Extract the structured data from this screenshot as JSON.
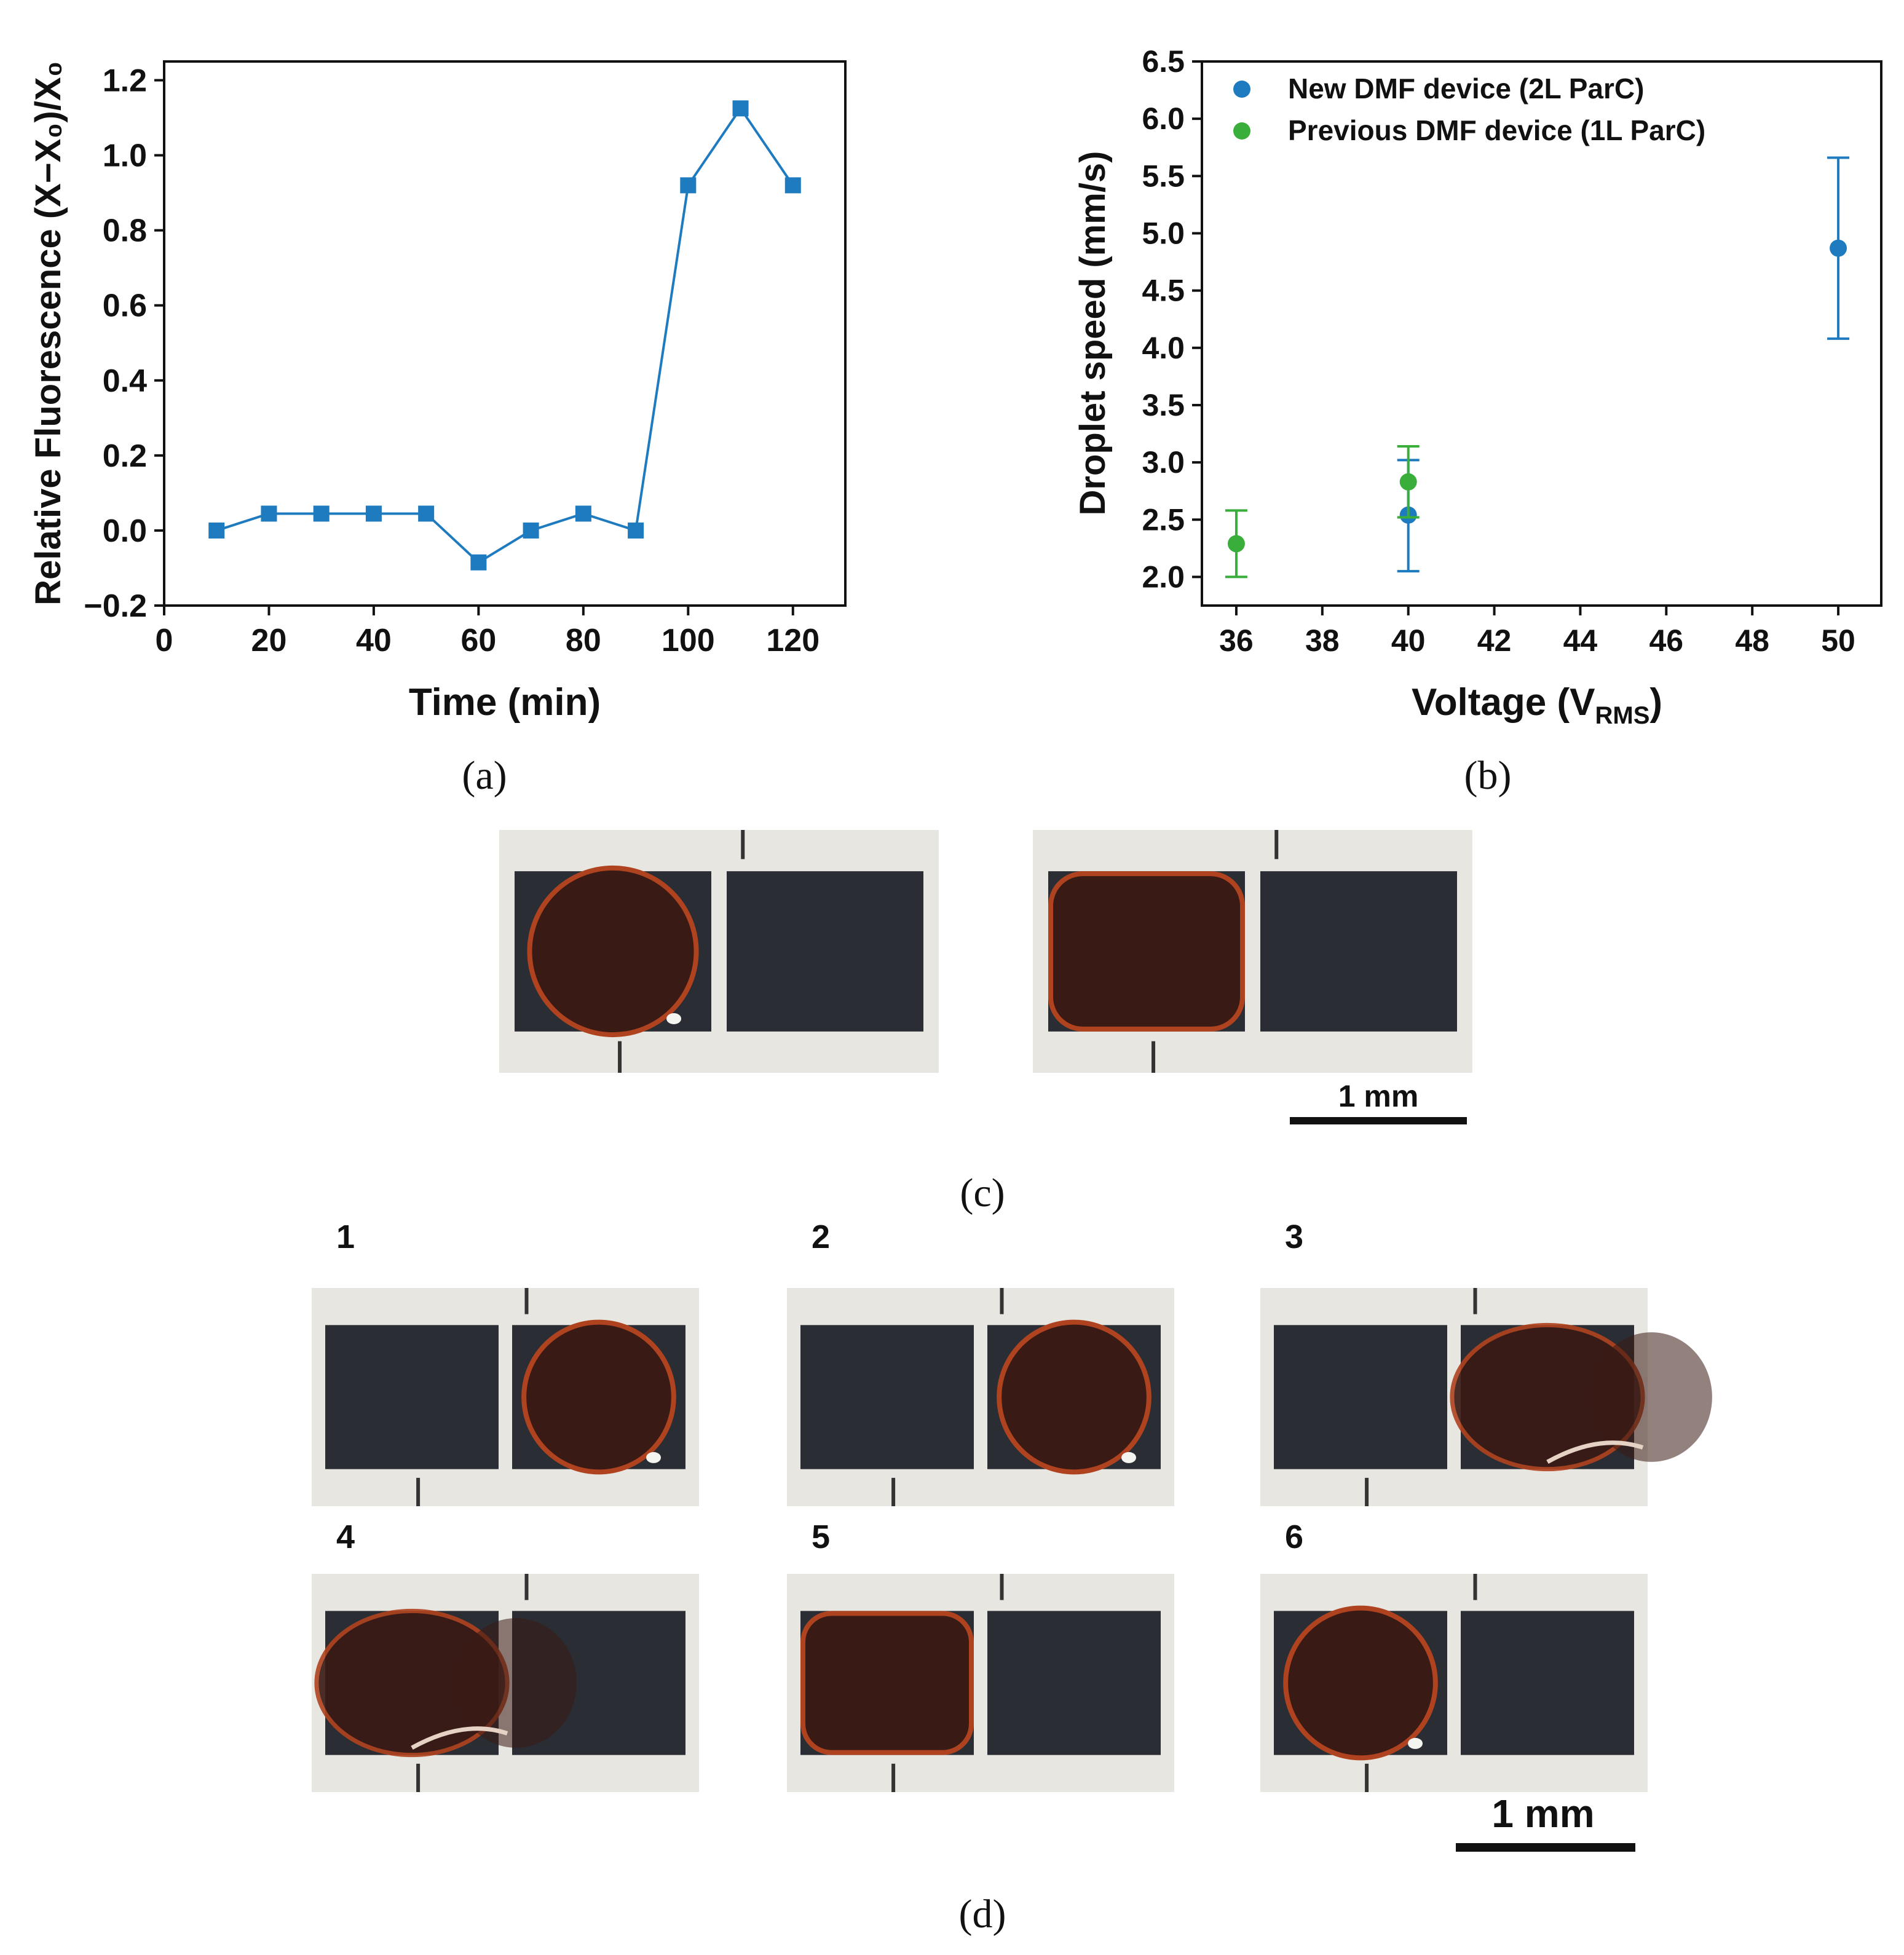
{
  "colors": {
    "blue": "#1f7bbf",
    "green": "#3aae3a",
    "dark_electrode": "#2a2d33",
    "droplet": "#3a1a14",
    "droplet_rim": "#b0431f",
    "grid_bg": "#e8e6e0"
  },
  "chart_data": [
    {
      "type": "line",
      "panel": "(a)",
      "xlabel": "Time (min)",
      "ylabel": "Relative Fluorescence (X−X₀)/X₀",
      "xlim": [
        0,
        130
      ],
      "ylim": [
        -0.2,
        1.25
      ],
      "xticks": [
        0,
        20,
        40,
        60,
        80,
        100,
        120
      ],
      "yticks": [
        -0.2,
        0.0,
        0.2,
        0.4,
        0.6,
        0.8,
        1.0,
        1.2
      ],
      "ytick_labels": [
        "−0.2",
        "0.0",
        "0.2",
        "0.4",
        "0.6",
        "0.8",
        "1.0",
        "1.2"
      ],
      "series": [
        {
          "name": "fluorescence",
          "marker": "square",
          "x": [
            10,
            20,
            30,
            40,
            50,
            60,
            70,
            80,
            90,
            100,
            110,
            120
          ],
          "y": [
            0.0,
            0.045,
            0.045,
            0.045,
            0.045,
            -0.085,
            0.0,
            0.045,
            0.0,
            0.92,
            1.125,
            0.92
          ]
        }
      ]
    },
    {
      "type": "scatter",
      "panel": "(b)",
      "xlabel_main": "Voltage (V",
      "xlabel_sub": "RMS",
      "xlabel_end": ")",
      "ylabel": "Droplet speed (mm/s)",
      "xlim": [
        35.2,
        51
      ],
      "ylim": [
        1.75,
        6.5
      ],
      "xticks": [
        36,
        38,
        40,
        42,
        44,
        46,
        48,
        50
      ],
      "yticks": [
        2.0,
        2.5,
        3.0,
        3.5,
        4.0,
        4.5,
        5.0,
        5.5,
        6.0,
        6.5
      ],
      "legend_position": "top-left",
      "series": [
        {
          "name": "New DMF device (2L ParC)",
          "color": "blue",
          "x": [
            40,
            50
          ],
          "y": [
            2.54,
            4.87
          ],
          "err_low": [
            2.05,
            4.08
          ],
          "err_high": [
            3.02,
            5.66
          ]
        },
        {
          "name": "Previous DMF device (1L ParC)",
          "color": "green",
          "x": [
            36,
            40
          ],
          "y": [
            2.29,
            2.83
          ],
          "err_low": [
            2.0,
            2.52
          ],
          "err_high": [
            2.58,
            3.14
          ]
        }
      ]
    }
  ],
  "captions": {
    "a": "(a)",
    "b": "(b)",
    "c": "(c)",
    "d": "(d)"
  },
  "panel_c": {
    "scale_label": "1 mm",
    "photos": [
      {
        "droplet_pad": 0,
        "shape": "circle"
      },
      {
        "droplet_pad": 0,
        "shape": "square"
      }
    ]
  },
  "panel_d": {
    "scale_label": "1 mm",
    "frames": [
      {
        "label": "1",
        "droplet_pad": 1,
        "shape": "circle"
      },
      {
        "label": "2",
        "droplet_pad": 1,
        "shape": "circle"
      },
      {
        "label": "3",
        "droplet_pad": 1,
        "shape": "split"
      },
      {
        "label": "4",
        "droplet_pad": 0,
        "shape": "split"
      },
      {
        "label": "5",
        "droplet_pad": 0,
        "shape": "square"
      },
      {
        "label": "6",
        "droplet_pad": 0,
        "shape": "circle"
      }
    ]
  }
}
